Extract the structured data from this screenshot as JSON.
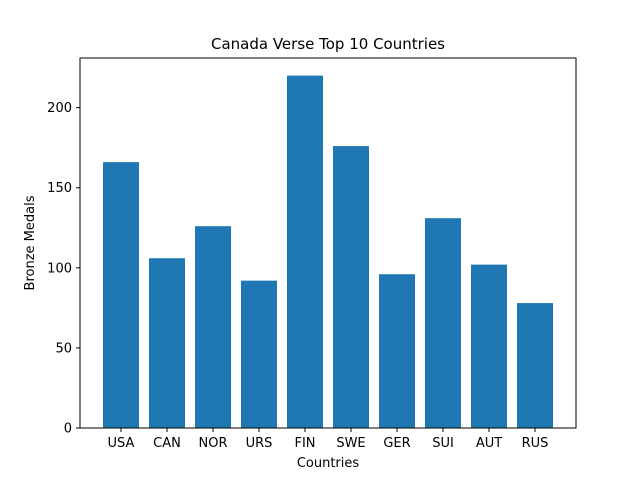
{
  "chart_data": {
    "type": "bar",
    "title": "Canada Verse Top 10 Countries",
    "xlabel": "Countries",
    "ylabel": "Bronze Medals",
    "categories": [
      "USA",
      "CAN",
      "NOR",
      "URS",
      "FIN",
      "SWE",
      "GER",
      "SUI",
      "AUT",
      "RUS"
    ],
    "values": [
      166,
      106,
      126,
      92,
      220,
      176,
      96,
      131,
      102,
      78
    ],
    "ylim": [
      0,
      231
    ],
    "yticks": [
      0,
      50,
      100,
      150,
      200
    ],
    "grid": false,
    "legend": "none",
    "bar_color": "#1f77b4"
  }
}
